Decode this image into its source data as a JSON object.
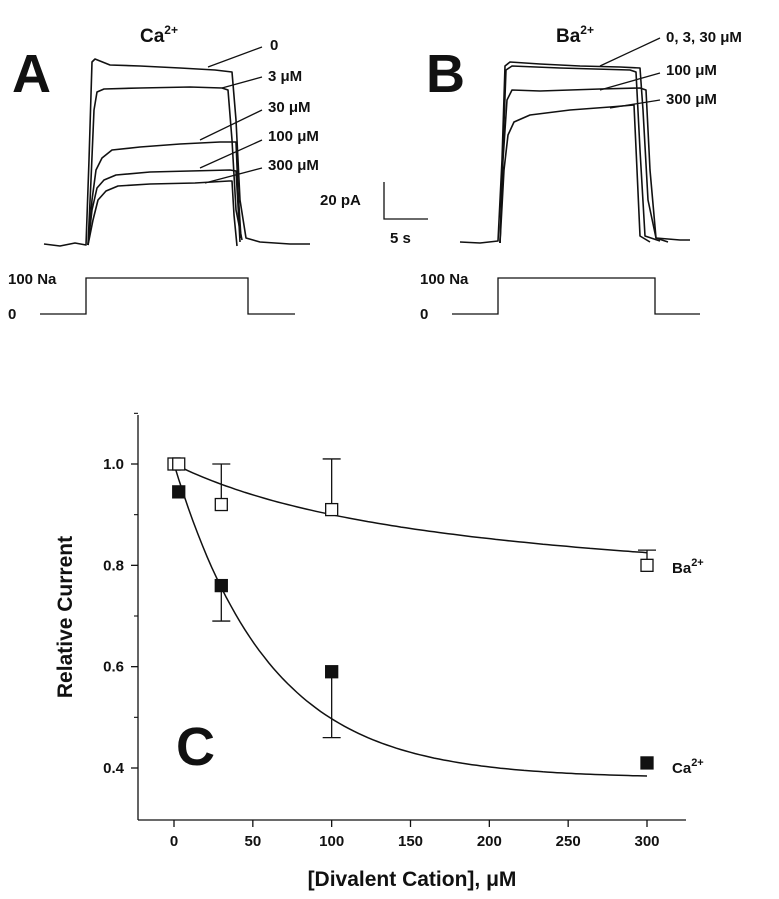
{
  "panels": {
    "a": {
      "letter": "A",
      "ion": "Ca",
      "ion_charge": "2+",
      "trace_labels": [
        "0",
        "3 μM",
        "30 μM",
        "100 μM",
        "300 μM"
      ],
      "stim_high": "100 Na",
      "stim_low": "0"
    },
    "b": {
      "letter": "B",
      "ion": "Ba",
      "ion_charge": "2+",
      "trace_labels": [
        "0, 3, 30 μM",
        "100 μM",
        "300 μM"
      ],
      "stim_high": "100 Na",
      "stim_low": "0"
    },
    "c": {
      "letter": "C"
    }
  },
  "scale_bar": {
    "current": "20 pA",
    "time": "5 s"
  },
  "chart_data": {
    "type": "scatter",
    "xlabel": "[Divalent Cation], μM",
    "ylabel": "Relative Current",
    "xlim": [
      -12,
      330
    ],
    "ylim": [
      0.31,
      1.1
    ],
    "x_ticks": [
      0,
      50,
      100,
      150,
      200,
      250,
      300
    ],
    "y_ticks": [
      0.4,
      0.6,
      0.8,
      1.0
    ],
    "y_tick_labels": [
      "0.4",
      "0.6",
      "0.8",
      "1.0"
    ],
    "grid": false,
    "series": [
      {
        "name": "Ba",
        "name_charge": "2+",
        "marker": "open-square",
        "x": [
          0,
          3,
          30,
          100,
          300
        ],
        "y": [
          1.0,
          1.0,
          0.92,
          0.91,
          0.8
        ],
        "err_plus": [
          0,
          0,
          0.08,
          0.1,
          0.03
        ],
        "err_minus": [
          0,
          0,
          0,
          0,
          0
        ]
      },
      {
        "name": "Ca",
        "name_charge": "2+",
        "marker": "filled-square",
        "x": [
          0,
          3,
          30,
          100,
          300
        ],
        "y": [
          1.0,
          0.945,
          0.76,
          0.59,
          0.41
        ],
        "err_plus": [
          0,
          0,
          0,
          0,
          0
        ],
        "err_minus": [
          0,
          0,
          0.07,
          0.13,
          0
        ]
      }
    ]
  }
}
